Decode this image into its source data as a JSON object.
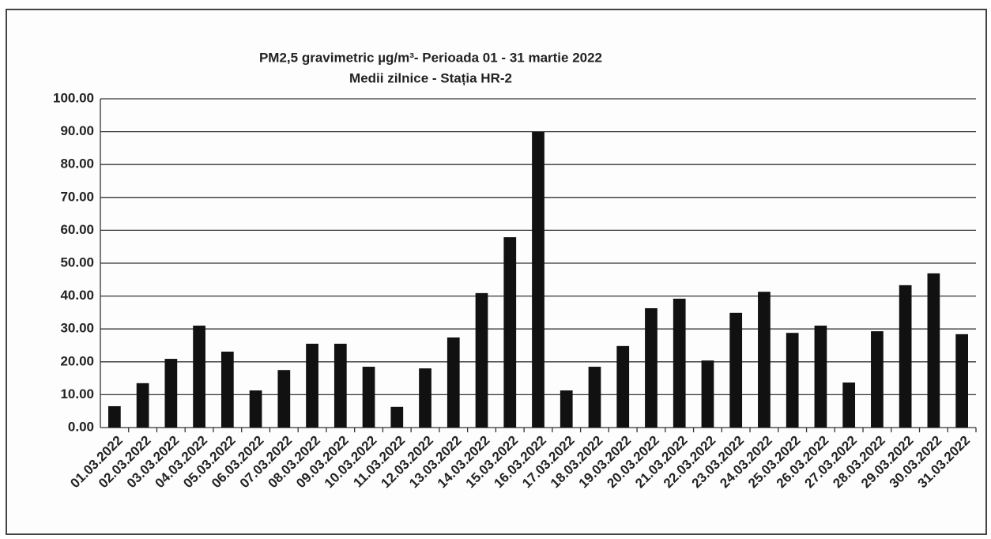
{
  "chart_data": {
    "type": "bar",
    "title": "PM2,5 gravimetric µg/m³- Perioada 01 - 31  martie 2022",
    "subtitle": "Medii zilnice - Stația HR-2",
    "categories": [
      "01.03.2022",
      "02.03.2022",
      "03.03.2022",
      "04.03.2022",
      "05.03.2022",
      "06.03.2022",
      "07.03.2022",
      "08.03.2022",
      "09.03.2022",
      "10.03.2022",
      "11.03.2022",
      "12.03.2022",
      "13.03.2022",
      "14.03.2022",
      "15.03.2022",
      "16.03.2022",
      "17.03.2022",
      "18.03.2022",
      "19.03.2022",
      "20.03.2022",
      "21.03.2022",
      "22.03.2022",
      "23.03.2022",
      "24.03.2022",
      "25.03.2022",
      "26.03.2022",
      "27.03.2022",
      "28.03.2022",
      "29.03.2022",
      "30.03.2022",
      "31.03.2022"
    ],
    "values": [
      6.5,
      13.5,
      20.9,
      31.0,
      23.1,
      11.3,
      17.5,
      25.5,
      25.5,
      18.5,
      6.3,
      18.0,
      27.4,
      40.9,
      57.9,
      89.9,
      11.3,
      18.5,
      24.8,
      36.3,
      39.2,
      20.4,
      34.9,
      41.3,
      28.8,
      31.0,
      13.7,
      29.3,
      43.3,
      46.9,
      28.4
    ],
    "color": "#111111",
    "ylim": [
      0,
      100
    ],
    "yticks": [
      {
        "value": 0,
        "label": "0.00"
      },
      {
        "value": 10,
        "label": "10.00"
      },
      {
        "value": 20,
        "label": "20.00"
      },
      {
        "value": 30,
        "label": "30.00"
      },
      {
        "value": 40,
        "label": "40.00"
      },
      {
        "value": 50,
        "label": "50.00"
      },
      {
        "value": 60,
        "label": "60.00"
      },
      {
        "value": 70,
        "label": "70.00"
      },
      {
        "value": 80,
        "label": "80.00"
      },
      {
        "value": 90,
        "label": "90.00"
      },
      {
        "value": 100,
        "label": "100.00"
      }
    ],
    "grid": true
  }
}
